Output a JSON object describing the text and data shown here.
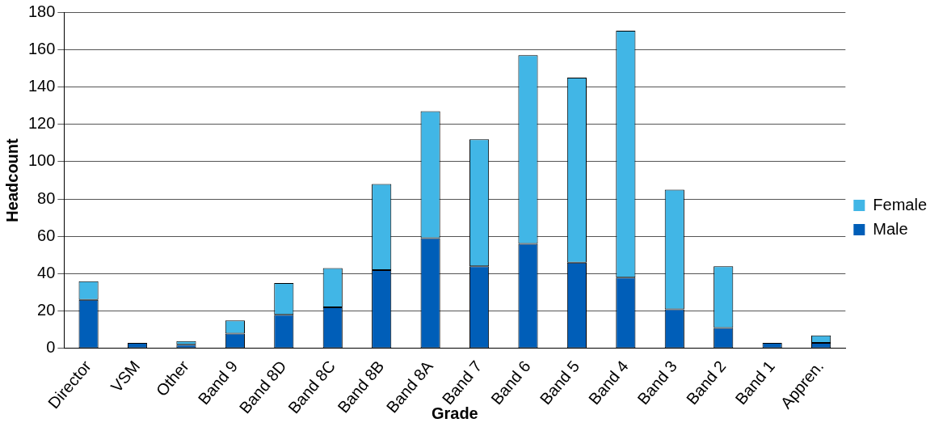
{
  "chart_data": {
    "type": "bar",
    "stacked": true,
    "xlabel": "Grade",
    "ylabel": "Headcount",
    "categories": [
      "Director",
      "VSM",
      "Other",
      "Band 9",
      "Band 8D",
      "Band 8C",
      "Band 8B",
      "Band 8A",
      "Band 7",
      "Band 6",
      "Band 5",
      "Band 4",
      "Band 3",
      "Band 2",
      "Band 1",
      "Appren."
    ],
    "series": [
      {
        "name": "Male",
        "color": "#005eb8",
        "values": [
          26,
          3,
          2,
          8,
          18,
          22,
          42,
          59,
          44,
          56,
          46,
          38,
          21,
          11,
          3,
          3
        ]
      },
      {
        "name": "Female",
        "color": "#41b6e6",
        "values": [
          10,
          null,
          2,
          7,
          17,
          21,
          46,
          68,
          68,
          101,
          99,
          132,
          64,
          33,
          null,
          4
        ]
      }
    ],
    "ylim": [
      0,
      180
    ],
    "yticks": [
      0,
      20,
      40,
      60,
      80,
      100,
      120,
      140,
      160,
      180
    ],
    "grid": "y",
    "legend": "right"
  }
}
